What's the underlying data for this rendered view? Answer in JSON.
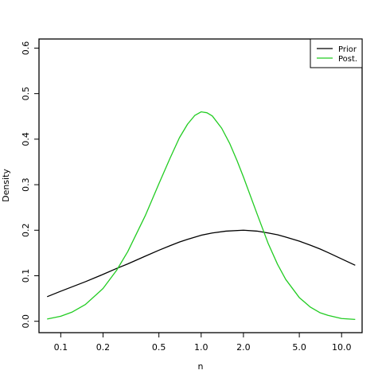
{
  "chart_data": {
    "type": "line",
    "xlabel": "n",
    "ylabel": "Density",
    "x_scale": "log",
    "xlim": [
      0.07,
      14
    ],
    "ylim": [
      -0.025,
      0.62
    ],
    "x_ticks": [
      0.1,
      0.2,
      0.5,
      1.0,
      2.0,
      5.0,
      10.0
    ],
    "x_tick_labels": [
      "0.1",
      "0.2",
      "0.5",
      "1.0",
      "2.0",
      "5.0",
      "10.0"
    ],
    "y_ticks": [
      0.0,
      0.1,
      0.2,
      0.3,
      0.4,
      0.5,
      0.6
    ],
    "y_tick_labels": [
      "0.0",
      "0.1",
      "0.2",
      "0.3",
      "0.4",
      "0.5",
      "0.6"
    ],
    "grid": false,
    "legend": {
      "placement": "top-right"
    },
    "series": [
      {
        "name": "Prior",
        "color": "#000000",
        "x": [
          0.08,
          0.1,
          0.15,
          0.2,
          0.25,
          0.3,
          0.4,
          0.5,
          0.6,
          0.7,
          0.8,
          1.0,
          1.2,
          1.5,
          2.0,
          2.5,
          3.0,
          3.5,
          4.0,
          5.0,
          6.0,
          7.0,
          8.0,
          10.0,
          12.5
        ],
        "y": [
          0.054,
          0.066,
          0.087,
          0.103,
          0.116,
          0.126,
          0.143,
          0.156,
          0.166,
          0.174,
          0.18,
          0.189,
          0.194,
          0.198,
          0.2,
          0.198,
          0.194,
          0.19,
          0.185,
          0.176,
          0.167,
          0.159,
          0.151,
          0.137,
          0.123
        ]
      },
      {
        "name": "Post.",
        "color": "#22cc22",
        "x": [
          0.08,
          0.1,
          0.12,
          0.15,
          0.2,
          0.25,
          0.3,
          0.4,
          0.5,
          0.6,
          0.7,
          0.8,
          0.9,
          1.0,
          1.1,
          1.2,
          1.4,
          1.6,
          1.8,
          2.0,
          2.5,
          3.0,
          3.5,
          4.0,
          5.0,
          6.0,
          7.0,
          8.0,
          10.0,
          12.5
        ],
        "y": [
          0.005,
          0.011,
          0.02,
          0.037,
          0.072,
          0.112,
          0.153,
          0.232,
          0.302,
          0.358,
          0.403,
          0.433,
          0.452,
          0.46,
          0.458,
          0.451,
          0.424,
          0.39,
          0.353,
          0.317,
          0.236,
          0.171,
          0.125,
          0.092,
          0.052,
          0.031,
          0.019,
          0.013,
          0.006,
          0.004
        ]
      }
    ]
  }
}
